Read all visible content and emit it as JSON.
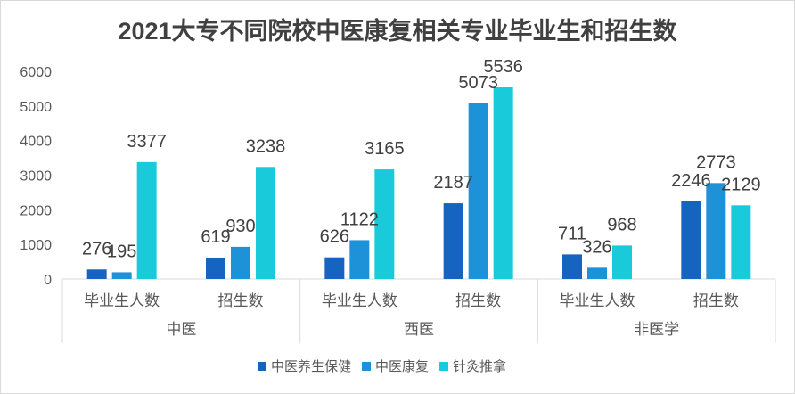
{
  "chart_data": {
    "type": "bar",
    "title": "2021大专不同院校中医康复相关专业毕业生和招生数",
    "groups": [
      {
        "name": "中医",
        "categories": [
          "毕业生人数",
          "招生数"
        ]
      },
      {
        "name": "西医",
        "categories": [
          "毕业生人数",
          "招生数"
        ]
      },
      {
        "name": "非医学",
        "categories": [
          "毕业生人数",
          "招生数"
        ]
      }
    ],
    "series": [
      {
        "name": "中医养生保健",
        "color": "#1565C0",
        "values": [
          276,
          619,
          626,
          2187,
          711,
          2246
        ]
      },
      {
        "name": "中医康复",
        "color": "#1E92D8",
        "values": [
          195,
          930,
          1122,
          5073,
          326,
          2773
        ]
      },
      {
        "name": "针灸推拿",
        "color": "#19CADB",
        "values": [
          3377,
          3238,
          3165,
          5536,
          968,
          2129
        ]
      }
    ],
    "ylim": [
      0,
      6000
    ],
    "yticks": [
      0,
      1000,
      2000,
      3000,
      4000,
      5000,
      6000
    ],
    "grid": false,
    "data_labels": true,
    "legend": "bottom"
  }
}
